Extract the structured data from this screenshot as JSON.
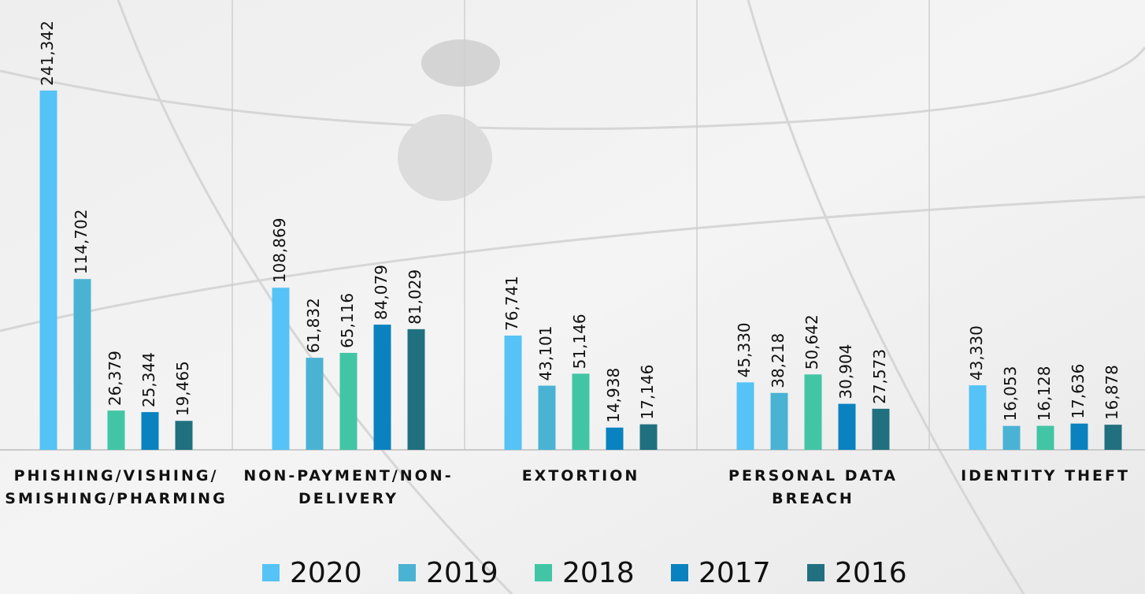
{
  "chart_data": {
    "type": "bar",
    "categories": [
      [
        "PHISHING/VISHING/",
        "SMISHING/PHARMING"
      ],
      [
        "NON-PAYMENT/NON-",
        "DELIVERY"
      ],
      [
        "EXTORTION"
      ],
      [
        "PERSONAL DATA",
        "BREACH"
      ],
      [
        "IDENTITY THEFT"
      ]
    ],
    "series": [
      {
        "name": "2020",
        "color": "#55c3f5",
        "values": [
          241342,
          108869,
          76741,
          45330,
          43330
        ],
        "value_labels": [
          "241,342",
          "108,869",
          "76,741",
          "45,330",
          "43,330"
        ]
      },
      {
        "name": "2019",
        "color": "#4ab3d4",
        "values": [
          114702,
          61832,
          43101,
          38218,
          16053
        ],
        "value_labels": [
          "114,702",
          "61,832",
          "43,101",
          "38,218",
          "16,053"
        ]
      },
      {
        "name": "2018",
        "color": "#42c5a5",
        "values": [
          26379,
          65116,
          51146,
          50642,
          16128
        ],
        "value_labels": [
          "26,379",
          "65,116",
          "51,146",
          "50,642",
          "16,128"
        ]
      },
      {
        "name": "2017",
        "color": "#0a82bf",
        "values": [
          25344,
          84079,
          14938,
          30904,
          17636
        ],
        "value_labels": [
          "25,344",
          "84,079",
          "14,938",
          "30,904",
          "17,636"
        ]
      },
      {
        "name": "2016",
        "color": "#21707f",
        "values": [
          19465,
          81029,
          17146,
          27573,
          16878
        ],
        "value_labels": [
          "19,465",
          "81,029",
          "17,146",
          "27,573",
          "16,878"
        ]
      }
    ],
    "ylim": [
      0,
      300000
    ],
    "legend": "bottom"
  }
}
